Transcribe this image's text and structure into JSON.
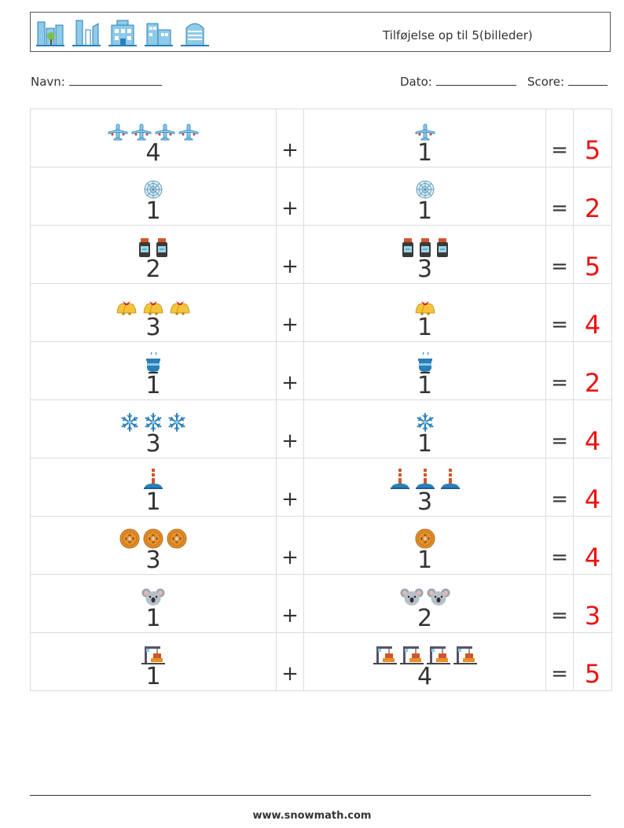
{
  "header": {
    "title": "Tilføjelse op til 5(billeder)",
    "icons": [
      "office-building-icon",
      "skyscrapers-icon",
      "apartment-building-icon",
      "city-buildings-icon",
      "tower-building-icon"
    ]
  },
  "info": {
    "name_label": "Navn:",
    "date_label": "Dato:",
    "score_label": "Score:"
  },
  "operators": {
    "plus": "+",
    "equals": "="
  },
  "rows": [
    {
      "icon": "airplane-icon",
      "a": "4",
      "b": "1",
      "answer": "5"
    },
    {
      "icon": "spider-web-icon",
      "a": "1",
      "b": "1",
      "answer": "2"
    },
    {
      "icon": "medicine-bottle-icon",
      "a": "2",
      "b": "3",
      "answer": "5"
    },
    {
      "icon": "bells-icon",
      "a": "3",
      "b": "1",
      "answer": "4"
    },
    {
      "icon": "cooking-pot-icon",
      "a": "1",
      "b": "1",
      "answer": "2"
    },
    {
      "icon": "snowflake-icon",
      "a": "3",
      "b": "1",
      "answer": "4"
    },
    {
      "icon": "chimney-icon",
      "a": "1",
      "b": "3",
      "answer": "4"
    },
    {
      "icon": "button-icon",
      "a": "3",
      "b": "1",
      "answer": "4"
    },
    {
      "icon": "koala-icon",
      "a": "1",
      "b": "2",
      "answer": "3"
    },
    {
      "icon": "crane-icon",
      "a": "1",
      "b": "4",
      "answer": "5"
    }
  ],
  "colors": {
    "answer": "#ee1111",
    "text": "#333333",
    "grid": "#dcdcdc"
  },
  "footer": {
    "url": "www.snowmath.com"
  }
}
